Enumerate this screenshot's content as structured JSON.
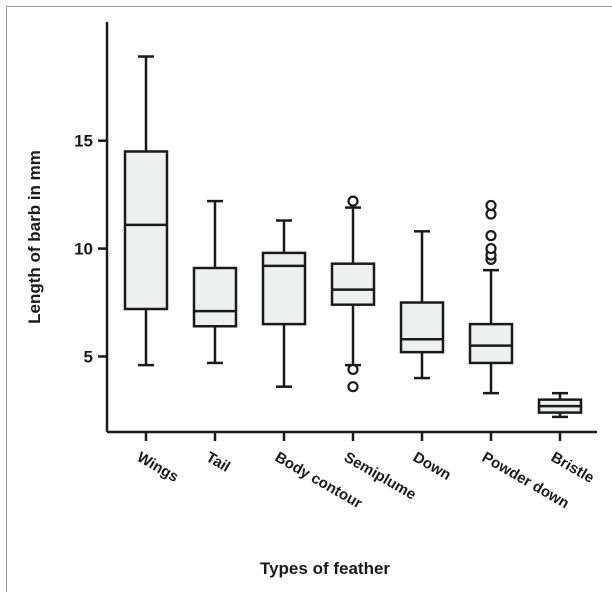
{
  "chart_data": {
    "type": "box",
    "xlabel": "Types of feather",
    "ylabel": "Length of barb in mm",
    "ylim": [
      1.5,
      20.5
    ],
    "yticks": [
      5,
      10,
      15
    ],
    "grid": false,
    "colors": {
      "box_fill": "#eef0ef",
      "stroke": "#1a1a1a"
    },
    "categories": [
      "Wings",
      "Tail",
      "Body contour",
      "Semiplume",
      "Down",
      "Powder down",
      "Bristle"
    ],
    "boxes": [
      {
        "category": "Wings",
        "whisker_low": 4.6,
        "q1": 7.2,
        "median": 11.1,
        "q3": 14.5,
        "whisker_high": 18.9,
        "outliers": []
      },
      {
        "category": "Tail",
        "whisker_low": 4.7,
        "q1": 6.4,
        "median": 7.1,
        "q3": 9.1,
        "whisker_high": 12.2,
        "outliers": []
      },
      {
        "category": "Body contour",
        "whisker_low": 3.6,
        "q1": 6.5,
        "median": 9.2,
        "q3": 9.8,
        "whisker_high": 11.3,
        "outliers": []
      },
      {
        "category": "Semiplume",
        "whisker_low": 4.6,
        "q1": 7.4,
        "median": 8.1,
        "q3": 9.3,
        "whisker_high": 11.9,
        "outliers": [
          3.6,
          4.4,
          12.2
        ]
      },
      {
        "category": "Down",
        "whisker_low": 4.0,
        "q1": 5.2,
        "median": 5.8,
        "q3": 7.5,
        "whisker_high": 10.8,
        "outliers": []
      },
      {
        "category": "Powder down",
        "whisker_low": 3.3,
        "q1": 4.7,
        "median": 5.5,
        "q3": 6.5,
        "whisker_high": 9.0,
        "outliers": [
          9.5,
          9.7,
          10.0,
          10.6,
          11.6,
          12.0
        ]
      },
      {
        "category": "Bristle",
        "whisker_low": 2.2,
        "q1": 2.4,
        "median": 2.7,
        "q3": 3.0,
        "whisker_high": 3.3,
        "outliers": []
      }
    ]
  }
}
